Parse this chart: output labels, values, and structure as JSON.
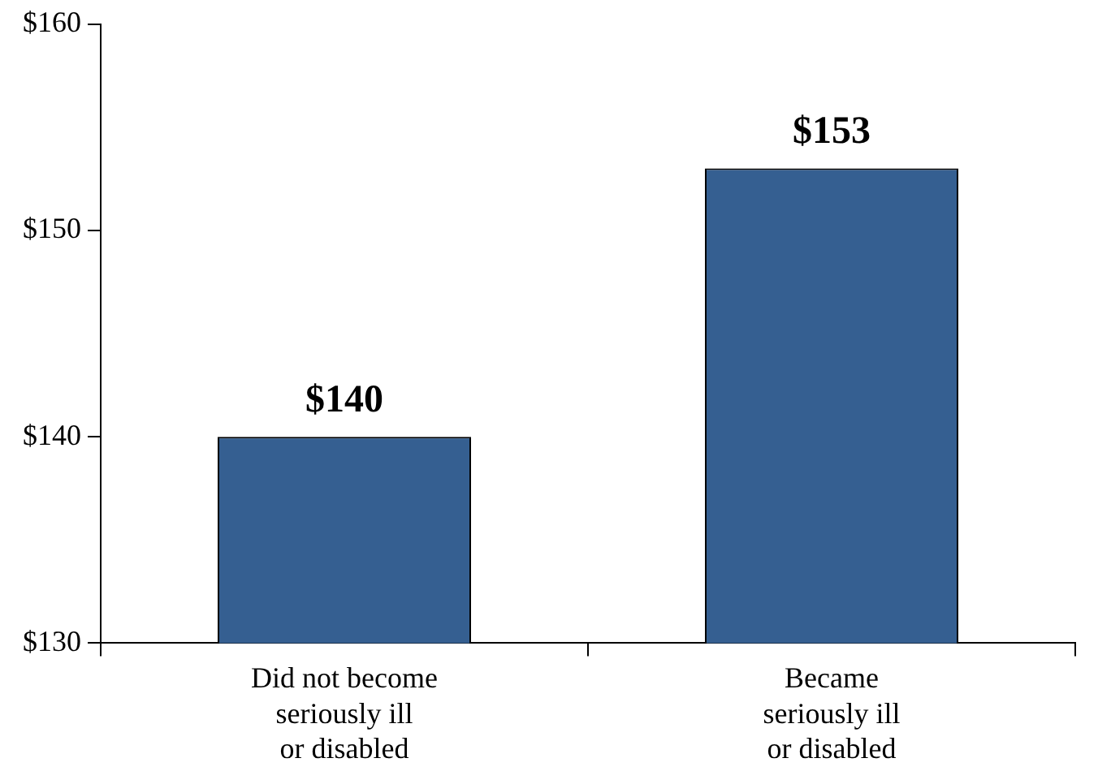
{
  "chart_data": {
    "type": "bar",
    "categories": [
      "Did not become\nseriously ill\nor disabled",
      "Became\nseriously ill\nor disabled"
    ],
    "values": [
      140,
      153
    ],
    "color": "#355f91",
    "value_labels": [
      "$140",
      "$153"
    ],
    "ylim": [
      130,
      160
    ],
    "yticks": [
      {
        "value": 130,
        "label": "$130"
      },
      {
        "value": 140,
        "label": "$140"
      },
      {
        "value": 150,
        "label": "$150"
      },
      {
        "value": 160,
        "label": "$160"
      }
    ],
    "grid": false,
    "legend": false
  }
}
